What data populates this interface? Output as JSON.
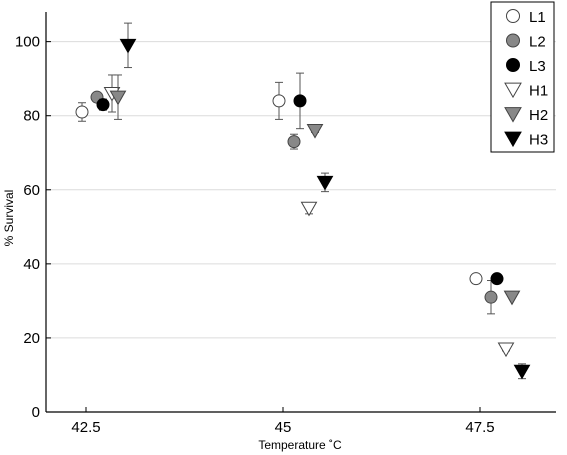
{
  "chart_data": {
    "type": "scatter",
    "title": "",
    "xlabel": "Temperature ˚C",
    "ylabel": "% Survival",
    "x_ticks": [
      "42.5",
      "45",
      "47.5"
    ],
    "y_ticks": [
      0,
      20,
      40,
      60,
      80,
      100
    ],
    "ylim": [
      0,
      108
    ],
    "grid": "horizontal",
    "legend_position": "top-right",
    "series": [
      {
        "name": "L1",
        "marker": "circle",
        "fill": "#ffffff",
        "points": [
          {
            "x": "42.5",
            "y": 81,
            "err": 2.5
          },
          {
            "x": "45",
            "y": 84,
            "err": 5
          },
          {
            "x": "47.5",
            "y": 36,
            "err": 0
          }
        ]
      },
      {
        "name": "L2",
        "marker": "circle",
        "fill": "#888888",
        "points": [
          {
            "x": "42.5",
            "y": 85,
            "err": 1
          },
          {
            "x": "45",
            "y": 73,
            "err": 2
          },
          {
            "x": "47.5",
            "y": 31,
            "err": 4.5
          }
        ]
      },
      {
        "name": "L3",
        "marker": "circle",
        "fill": "#000000",
        "points": [
          {
            "x": "42.5",
            "y": 83,
            "err": 1.5
          },
          {
            "x": "45",
            "y": 84,
            "err": 7.5
          },
          {
            "x": "47.5",
            "y": 36,
            "err": 0.5
          }
        ]
      },
      {
        "name": "H1",
        "marker": "triangle-down",
        "fill": "#ffffff",
        "points": [
          {
            "x": "42.5",
            "y": 86,
            "err": 5
          },
          {
            "x": "45",
            "y": 55,
            "err": 1.5
          },
          {
            "x": "47.5",
            "y": 17,
            "err": 0.5
          }
        ]
      },
      {
        "name": "H2",
        "marker": "triangle-down",
        "fill": "#888888",
        "points": [
          {
            "x": "42.5",
            "y": 85,
            "err": 6
          },
          {
            "x": "45",
            "y": 76,
            "err": 0.5
          },
          {
            "x": "47.5",
            "y": 31,
            "err": 0
          }
        ]
      },
      {
        "name": "H3",
        "marker": "triangle-down",
        "fill": "#000000",
        "points": [
          {
            "x": "42.5",
            "y": 99,
            "err": 6
          },
          {
            "x": "45",
            "y": 62,
            "err": 2.5
          },
          {
            "x": "47.5",
            "y": 11,
            "err": 2
          }
        ]
      }
    ]
  }
}
